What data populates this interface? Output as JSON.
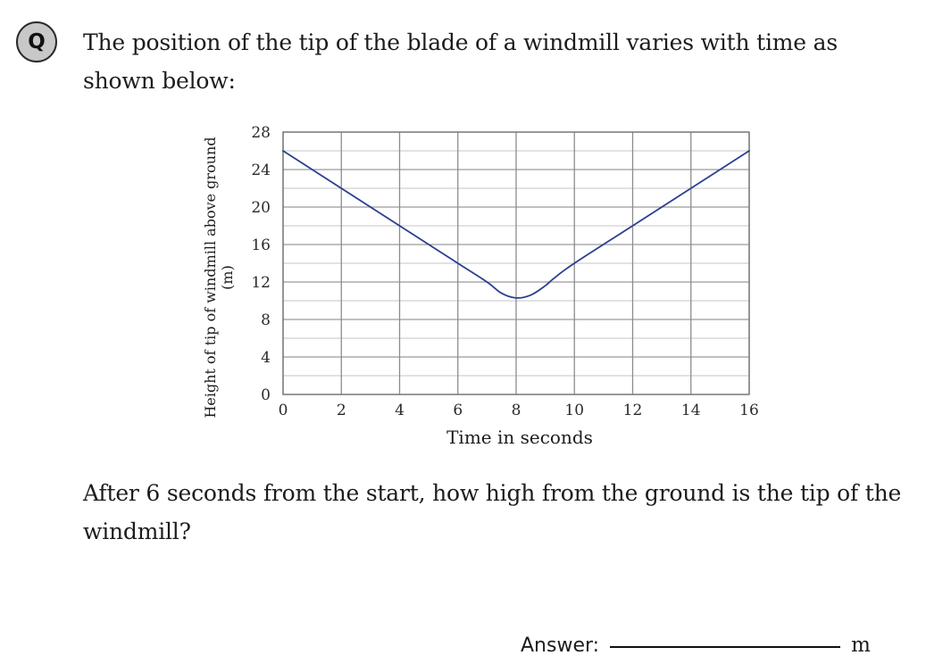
{
  "badge": "Q",
  "question_text": "The position of the tip of the blade of a windmill varies with time as shown below:",
  "followup_text": "After 6 seconds from the start, how high from the ground is the tip of the windmill?",
  "answer": {
    "label": "Answer:",
    "unit": "m"
  },
  "chart_data": {
    "type": "line",
    "title": "",
    "xlabel": "Time in seconds",
    "ylabel": [
      "Height of tip of windmill above ground",
      "(m)"
    ],
    "xlim": [
      0,
      16
    ],
    "ylim": [
      0,
      28
    ],
    "x_ticks": [
      0,
      2,
      4,
      6,
      8,
      10,
      12,
      14,
      16
    ],
    "y_ticks": [
      0,
      4,
      8,
      12,
      16,
      20,
      24,
      28
    ],
    "grid": true,
    "line_color": "#2b3f8f",
    "series": [
      {
        "x": [
          0,
          2,
          4,
          6,
          7,
          7.5,
          8,
          8.5,
          9,
          9.3,
          10,
          12,
          14,
          16
        ],
        "y": [
          26,
          22,
          18,
          14,
          12,
          10.8,
          10.3,
          10.6,
          11.6,
          12.4,
          14,
          18,
          22,
          26
        ]
      }
    ]
  }
}
